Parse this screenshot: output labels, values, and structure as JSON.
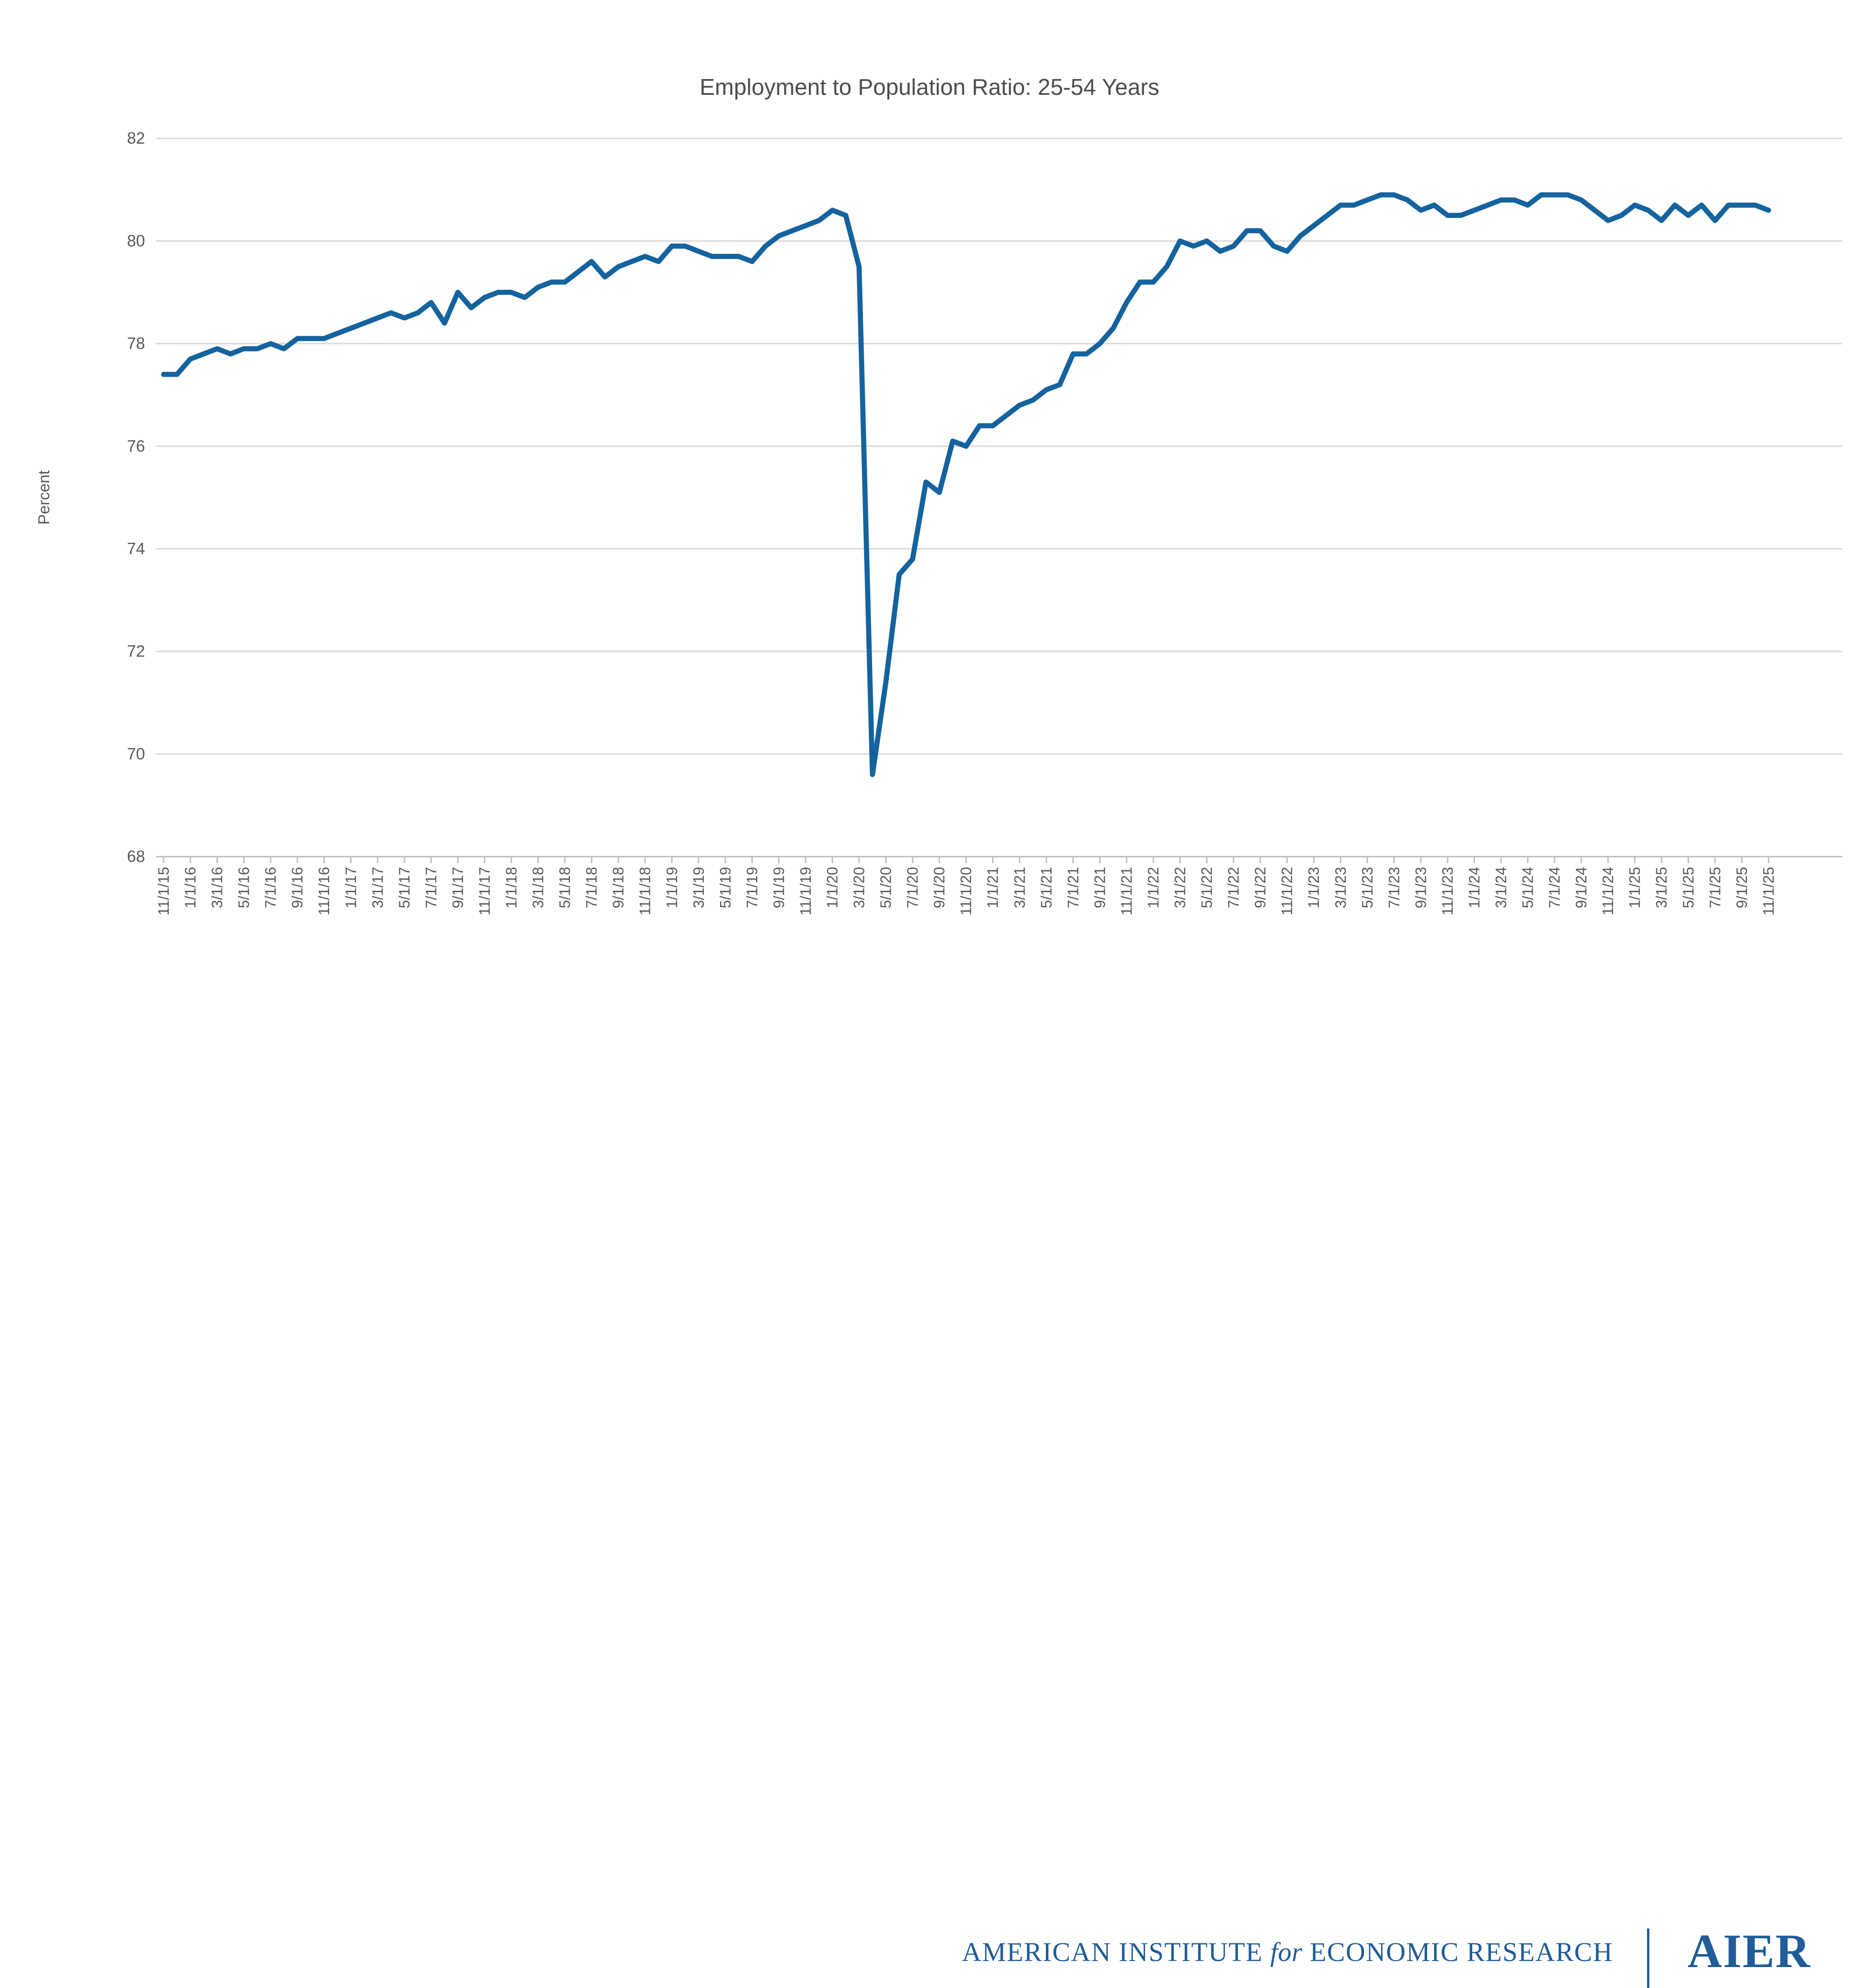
{
  "title": "Employment to Population Ratio: 25-54 Years",
  "footer": {
    "institute_left": "AMERICAN INSTITUTE",
    "for_word": "for",
    "institute_right": "ECONOMIC RESEARCH",
    "logo": "AIER"
  },
  "colors": {
    "line": "#14639E",
    "grid": "#D9D9D9",
    "axis": "#BFBFBF",
    "tick_text": "#595959",
    "title_text": "#4D4D4D",
    "footer_blue": "#1F5C99"
  },
  "chart_data": {
    "type": "line",
    "title": "Employment to Population Ratio: 25-54 Years",
    "xlabel": "",
    "ylabel": "Percent",
    "ylim": [
      68,
      82
    ],
    "ytick_step": 2,
    "y_ticks": [
      68,
      70,
      72,
      74,
      76,
      78,
      80,
      82
    ],
    "grid": true,
    "legend_position": "none",
    "x_tick_every": 2,
    "x_tick_labels": [
      "11/1/15",
      "1/1/16",
      "3/1/16",
      "5/1/16",
      "7/1/16",
      "9/1/16",
      "11/1/16",
      "1/1/17",
      "3/1/17",
      "5/1/17",
      "7/1/17",
      "9/1/17",
      "11/1/17",
      "1/1/18",
      "3/1/18",
      "5/1/18",
      "7/1/18",
      "9/1/18",
      "11/1/18",
      "1/1/19",
      "3/1/19",
      "5/1/19",
      "7/1/19",
      "9/1/19",
      "11/1/19",
      "1/1/20",
      "3/1/20",
      "5/1/20",
      "7/1/20",
      "9/1/20",
      "11/1/20",
      "1/1/21",
      "3/1/21",
      "5/1/21",
      "7/1/21",
      "9/1/21",
      "11/1/21",
      "1/1/22",
      "3/1/22",
      "5/1/22",
      "7/1/22",
      "9/1/22",
      "11/1/22",
      "1/1/23",
      "3/1/23",
      "5/1/23",
      "7/1/23",
      "9/1/23",
      "11/1/23",
      "1/1/24",
      "3/1/24",
      "5/1/24",
      "7/1/24",
      "9/1/24",
      "11/1/24",
      "1/1/25",
      "3/1/25",
      "5/1/25",
      "7/1/25",
      "9/1/25",
      "11/1/25"
    ],
    "x": [
      "11/1/15",
      "12/1/15",
      "1/1/16",
      "2/1/16",
      "3/1/16",
      "4/1/16",
      "5/1/16",
      "6/1/16",
      "7/1/16",
      "8/1/16",
      "9/1/16",
      "10/1/16",
      "11/1/16",
      "12/1/16",
      "1/1/17",
      "2/1/17",
      "3/1/17",
      "4/1/17",
      "5/1/17",
      "6/1/17",
      "7/1/17",
      "8/1/17",
      "9/1/17",
      "10/1/17",
      "11/1/17",
      "12/1/17",
      "1/1/18",
      "2/1/18",
      "3/1/18",
      "4/1/18",
      "5/1/18",
      "6/1/18",
      "7/1/18",
      "8/1/18",
      "9/1/18",
      "10/1/18",
      "11/1/18",
      "12/1/18",
      "1/1/19",
      "2/1/19",
      "3/1/19",
      "4/1/19",
      "5/1/19",
      "6/1/19",
      "7/1/19",
      "8/1/19",
      "9/1/19",
      "10/1/19",
      "11/1/19",
      "12/1/19",
      "1/1/20",
      "2/1/20",
      "3/1/20",
      "4/1/20",
      "5/1/20",
      "6/1/20",
      "7/1/20",
      "8/1/20",
      "9/1/20",
      "10/1/20",
      "11/1/20",
      "12/1/20",
      "1/1/21",
      "2/1/21",
      "3/1/21",
      "4/1/21",
      "5/1/21",
      "6/1/21",
      "7/1/21",
      "8/1/21",
      "9/1/21",
      "10/1/21",
      "11/1/21",
      "12/1/21",
      "1/1/22",
      "2/1/22",
      "3/1/22",
      "4/1/22",
      "5/1/22",
      "6/1/22",
      "7/1/22",
      "8/1/22",
      "9/1/22",
      "10/1/22",
      "11/1/22",
      "12/1/22",
      "1/1/23",
      "2/1/23",
      "3/1/23",
      "4/1/23",
      "5/1/23",
      "6/1/23",
      "7/1/23",
      "8/1/23",
      "9/1/23",
      "10/1/23",
      "11/1/23",
      "12/1/23",
      "1/1/24",
      "2/1/24",
      "3/1/24",
      "4/1/24",
      "5/1/24",
      "6/1/24",
      "7/1/24",
      "8/1/24",
      "9/1/24",
      "10/1/24",
      "11/1/24",
      "12/1/24",
      "1/1/25",
      "2/1/25",
      "3/1/25",
      "4/1/25",
      "5/1/25",
      "6/1/25",
      "7/1/25",
      "8/1/25",
      "9/1/25",
      "10/1/25",
      "11/1/25"
    ],
    "values": [
      77.4,
      77.4,
      77.7,
      77.8,
      77.9,
      77.8,
      77.9,
      77.9,
      78.0,
      77.9,
      78.1,
      78.1,
      78.1,
      78.2,
      78.3,
      78.4,
      78.5,
      78.6,
      78.5,
      78.6,
      78.8,
      78.4,
      79.0,
      78.7,
      78.9,
      79.0,
      79.0,
      78.9,
      79.1,
      79.2,
      79.2,
      79.4,
      79.6,
      79.3,
      79.5,
      79.6,
      79.7,
      79.6,
      79.9,
      79.9,
      79.8,
      79.7,
      79.7,
      79.7,
      79.6,
      79.9,
      80.1,
      80.2,
      80.3,
      80.4,
      80.6,
      80.5,
      79.5,
      69.6,
      71.4,
      73.5,
      73.8,
      75.3,
      75.1,
      76.1,
      76.0,
      76.4,
      76.4,
      76.6,
      76.8,
      76.9,
      77.1,
      77.2,
      77.8,
      77.8,
      78.0,
      78.3,
      78.8,
      79.2,
      79.2,
      79.5,
      80.0,
      79.9,
      80.0,
      79.8,
      79.9,
      80.2,
      80.2,
      79.9,
      79.8,
      80.1,
      80.3,
      80.5,
      80.7,
      80.7,
      80.8,
      80.9,
      80.9,
      80.8,
      80.6,
      80.7,
      80.5,
      80.5,
      80.6,
      80.7,
      80.8,
      80.8,
      80.7,
      80.9,
      80.9,
      80.9,
      80.8,
      80.6,
      80.4,
      80.5,
      80.7,
      80.6,
      80.4,
      80.7,
      80.5,
      80.7,
      80.4,
      80.7,
      80.7,
      80.7,
      80.6
    ]
  }
}
